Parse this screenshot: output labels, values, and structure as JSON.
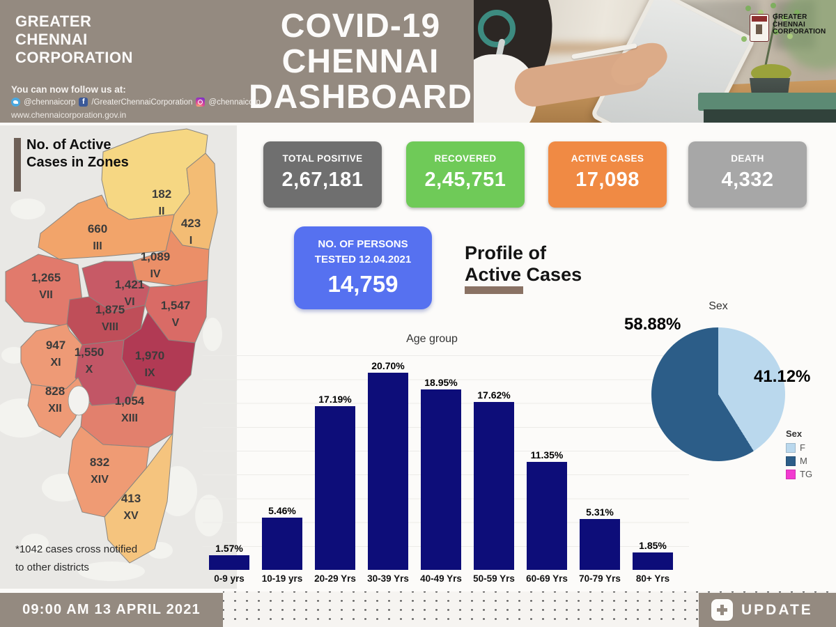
{
  "theme": {
    "taupe": "#948a80",
    "dark_brown": "#6e6057",
    "brown": "#8a7264"
  },
  "header": {
    "org_name": "GREATER CHENNAI CORPORATION",
    "follow_text": "You can now follow us at:",
    "social": {
      "twitter": "@chennaicorp",
      "facebook": "/GreaterChennaiCorporation",
      "instagram": "@chennaicorp"
    },
    "website": "www.chennaicorporation.gov.in",
    "title_line1": "COVID-19",
    "title_line2": "CHENNAI",
    "title_line3": "DASHBOARD",
    "logo_text": "GREATER CHENNAI CORPORATION"
  },
  "map": {
    "heading": "No. of Active Cases in Zones",
    "footnote": "*1042 cases cross notified to other districts",
    "zones": [
      {
        "value": "182",
        "numeral": "II",
        "color": "#f6d783"
      },
      {
        "value": "423",
        "numeral": "I",
        "color": "#f3bc74"
      },
      {
        "value": "660",
        "numeral": "III",
        "color": "#f2a46a"
      },
      {
        "value": "1,089",
        "numeral": "IV",
        "color": "#eb8f68"
      },
      {
        "value": "1,265",
        "numeral": "VII",
        "color": "#e17a6c"
      },
      {
        "value": "1,421",
        "numeral": "VI",
        "color": "#c75a66"
      },
      {
        "value": "1,875",
        "numeral": "VIII",
        "color": "#bf4e59"
      },
      {
        "value": "1,547",
        "numeral": "V",
        "color": "#d96b66"
      },
      {
        "value": "947",
        "numeral": "XI",
        "color": "#ee9a76"
      },
      {
        "value": "1,550",
        "numeral": "X",
        "color": "#c25666"
      },
      {
        "value": "1,970",
        "numeral": "IX",
        "color": "#b13a54"
      },
      {
        "value": "828",
        "numeral": "XII",
        "color": "#ee9a76"
      },
      {
        "value": "1,054",
        "numeral": "XIII",
        "color": "#e2806d"
      },
      {
        "value": "832",
        "numeral": "XIV",
        "color": "#ef9b74"
      },
      {
        "value": "413",
        "numeral": "XV",
        "color": "#f5c47e"
      }
    ]
  },
  "stats": [
    {
      "label": "TOTAL POSITIVE",
      "value": "2,67,181",
      "color": "#6f6f6f"
    },
    {
      "label": "RECOVERED",
      "value": "2,45,751",
      "color": "#6fca58"
    },
    {
      "label": "ACTIVE CASES",
      "value": "17,098",
      "color": "#f08a44"
    },
    {
      "label": "DEATH",
      "value": "4,332",
      "color": "#a7a7a7"
    }
  ],
  "tested": {
    "label_line1": "NO. OF PERSONS",
    "label_line2": "TESTED 12.04.2021",
    "value": "14,759",
    "color": "#5671f0"
  },
  "profile": {
    "line1": "Profile of",
    "line2": "Active Cases"
  },
  "chart_data": [
    {
      "type": "bar",
      "title": "Age group",
      "categories": [
        "0-9 yrs",
        "10-19 yrs",
        "20-29 Yrs",
        "30-39 Yrs",
        "40-49 Yrs",
        "50-59 Yrs",
        "60-69 Yrs",
        "70-79 Yrs",
        "80+ Yrs"
      ],
      "values": [
        1.57,
        5.46,
        17.19,
        20.7,
        18.95,
        17.62,
        11.35,
        5.31,
        1.85
      ],
      "labels": [
        "1.57%",
        "5.46%",
        "17.19%",
        "20.70%",
        "18.95%",
        "17.62%",
        "11.35%",
        "5.31%",
        "1.85%"
      ],
      "bar_color": "#0d0d79",
      "xlabel": "",
      "ylabel": "",
      "ylim": [
        0,
        22.5
      ],
      "grid": true,
      "legend_position": "none"
    },
    {
      "type": "pie",
      "title": "Sex",
      "legend_title": "Sex",
      "legend_position": "bottom-right",
      "slices": [
        {
          "label": "F",
          "value": 41.12,
          "display": "41.12%",
          "color": "#bad8ed"
        },
        {
          "label": "M",
          "value": 58.88,
          "display": "58.88%",
          "color": "#2c5d88"
        },
        {
          "label": "TG",
          "value": 0,
          "display": "",
          "color": "#f23ad0"
        }
      ]
    }
  ],
  "footer": {
    "timestamp": "09:00 AM 13 APRIL 2021",
    "update_label": "UPDATE"
  }
}
